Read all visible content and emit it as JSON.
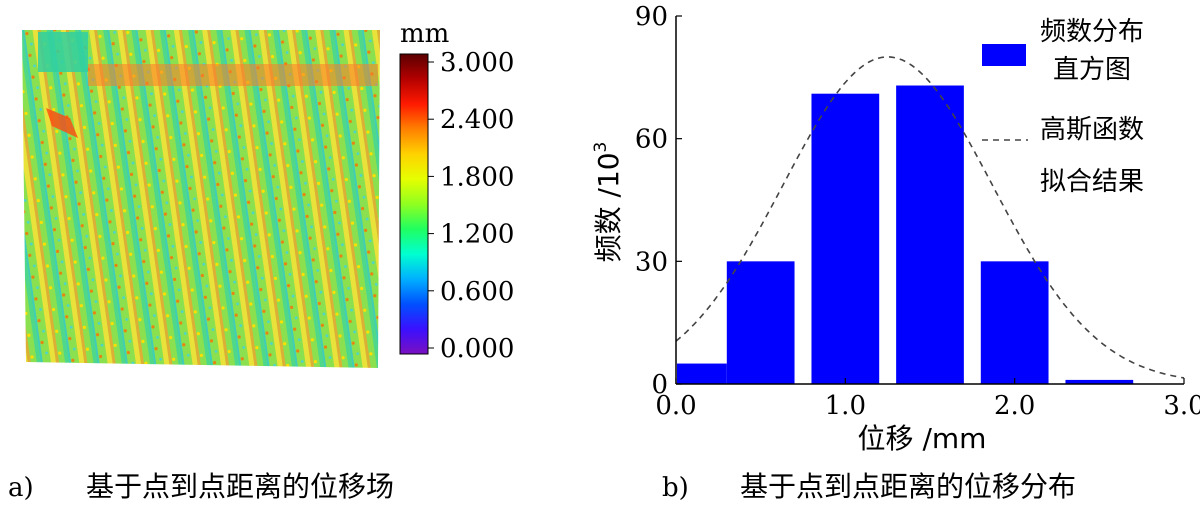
{
  "panel_a": {
    "caption_letter": "a)",
    "caption_text": "基于点到点距离的位移场",
    "colorbar": {
      "unit": "mm",
      "ticks": [
        "3.000",
        "2.400",
        "1.800",
        "1.200",
        "0.600",
        "0.000"
      ],
      "range": [
        0,
        3.0
      ],
      "colors": [
        "#5b0000",
        "#b40000",
        "#ff1a00",
        "#ff8000",
        "#ffd200",
        "#e6ff00",
        "#90ff20",
        "#20ff60",
        "#00ffd0",
        "#00b0ff",
        "#0050ff",
        "#3a10ff",
        "#7a10c0"
      ]
    },
    "field_base_color": "#7dd855"
  },
  "panel_b": {
    "caption_letter": "b)",
    "caption_text": "基于点到点距离的位移分布",
    "legend": {
      "bar_label_line1": "频数分布",
      "bar_label_line2": "直方图",
      "fit_label_line1": "高斯函数",
      "fit_label_line2": "拟合结果"
    }
  },
  "chart_data": {
    "type": "bar",
    "xlabel": "位移 /mm",
    "ylabel": "频数 /10",
    "ylabel_exponent": "3",
    "xlim": [
      0.0,
      3.0
    ],
    "ylim": [
      0,
      90
    ],
    "xticks": [
      "0.0",
      "1.0",
      "2.0",
      "3.0"
    ],
    "yticks": [
      "0",
      "30",
      "60",
      "90"
    ],
    "bar_color": "#0000ff",
    "bar_width": 0.4,
    "bars": [
      {
        "x": 0.1,
        "value": 5
      },
      {
        "x": 0.5,
        "value": 30
      },
      {
        "x": 1.0,
        "value": 71
      },
      {
        "x": 1.5,
        "value": 73
      },
      {
        "x": 2.0,
        "value": 30
      },
      {
        "x": 2.5,
        "value": 1
      }
    ],
    "gaussian_fit": {
      "style": "dashed",
      "peak": 80,
      "mean": 1.25,
      "sigma": 0.62
    }
  }
}
